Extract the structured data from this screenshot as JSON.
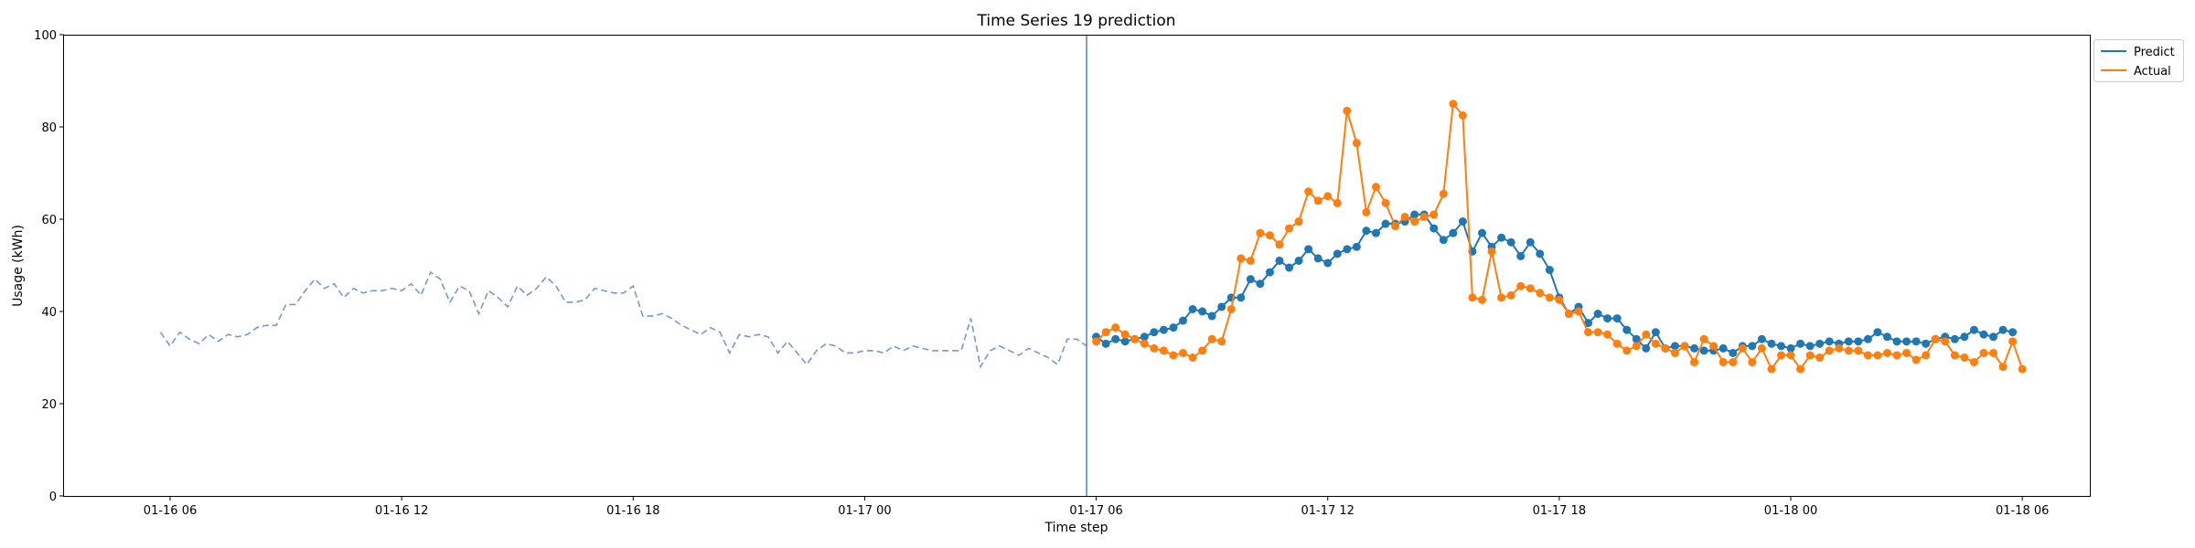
{
  "chart_data": {
    "type": "line",
    "title": "Time Series 19 prediction",
    "xlabel": "Time step",
    "ylabel": "Usage (kWh)",
    "xlim": [
      "2024-01-16T03:15",
      "2024-01-18T07:45"
    ],
    "ylim": [
      0,
      100
    ],
    "x_ticks": [
      {
        "x": "2024-01-16T06:00",
        "label": "01-16 06"
      },
      {
        "x": "2024-01-16T12:00",
        "label": "01-16 12"
      },
      {
        "x": "2024-01-16T18:00",
        "label": "01-16 18"
      },
      {
        "x": "2024-01-17T00:00",
        "label": "01-17 00"
      },
      {
        "x": "2024-01-17T06:00",
        "label": "01-17 06"
      },
      {
        "x": "2024-01-17T12:00",
        "label": "01-17 12"
      },
      {
        "x": "2024-01-17T18:00",
        "label": "01-17 18"
      },
      {
        "x": "2024-01-18T00:00",
        "label": "01-18 00"
      },
      {
        "x": "2024-01-18T06:00",
        "label": "01-18 06"
      }
    ],
    "y_ticks": [
      0,
      20,
      40,
      60,
      80,
      100
    ],
    "grid": false,
    "legend_position": "top-right, outside plot",
    "vertical_line": {
      "x": "2024-01-17T05:45",
      "color": "#5b7fbf"
    },
    "history": {
      "start": "2024-01-16T05:45",
      "interval_minutes": 15,
      "color": "#7799cc",
      "style": "dashed",
      "values": [
        35.5,
        32.5,
        35.5,
        34.0,
        33.0,
        35.0,
        33.5,
        35.0,
        34.5,
        35.0,
        36.5,
        37.0,
        37.0,
        41.5,
        41.5,
        44.5,
        47.0,
        45.0,
        46.0,
        43.0,
        45.0,
        44.0,
        44.5,
        44.5,
        45.0,
        44.5,
        46.0,
        43.5,
        48.5,
        47.0,
        42.0,
        45.5,
        44.5,
        39.5,
        44.5,
        43.0,
        41.0,
        45.5,
        43.5,
        45.0,
        47.5,
        45.5,
        42.0,
        42.0,
        42.5,
        45.0,
        44.5,
        44.0,
        44.0,
        45.5,
        39.0,
        39.0,
        39.5,
        38.5,
        37.0,
        36.0,
        35.0,
        36.5,
        35.5,
        31.0,
        35.0,
        34.5,
        35.0,
        34.5,
        31.0,
        33.5,
        31.0,
        28.5,
        31.5,
        33.0,
        32.5,
        31.0,
        31.0,
        31.5,
        31.5,
        31.0,
        32.5,
        31.5,
        32.5,
        32.0,
        31.5,
        31.5,
        31.5,
        31.5,
        38.5,
        28.0,
        31.5,
        32.5,
        31.5,
        30.5,
        32.0,
        31.0,
        30.0,
        28.5,
        34.0,
        34.0,
        32.5
      ]
    },
    "series": [
      {
        "name": "Predict",
        "color": "#1f77b4",
        "start": "2024-01-17T06:00",
        "interval_minutes": 15,
        "values": [
          34.5,
          33.0,
          34.0,
          33.5,
          34.0,
          34.5,
          35.5,
          36.0,
          36.5,
          38.0,
          40.5,
          40.0,
          39.0,
          41.0,
          43.0,
          43.0,
          47.0,
          46.0,
          48.5,
          51.0,
          49.5,
          51.0,
          53.5,
          51.5,
          50.5,
          52.5,
          53.5,
          54.0,
          57.5,
          57.0,
          59.0,
          59.0,
          59.5,
          61.0,
          61.0,
          58.0,
          55.5,
          57.0,
          59.5,
          53.0,
          57.0,
          54.0,
          56.0,
          55.0,
          52.0,
          55.0,
          52.5,
          49.0,
          43.0,
          39.5,
          41.0,
          37.5,
          39.5,
          38.5,
          38.5,
          36.0,
          34.0,
          32.0,
          35.5,
          32.0,
          32.5,
          32.5,
          32.0,
          31.5,
          31.5,
          32.0,
          31.0,
          32.5,
          32.5,
          34.0,
          33.0,
          32.5,
          32.0,
          33.0,
          32.5,
          33.0,
          33.5,
          33.0,
          33.5,
          33.5,
          34.0,
          35.5,
          34.5,
          33.5,
          33.5,
          33.5,
          33.0,
          34.0,
          34.5,
          34.0,
          34.5,
          36.0,
          35.0,
          34.5,
          36.0,
          35.5
        ]
      },
      {
        "name": "Actual",
        "color": "#ff7f0e",
        "start": "2024-01-17T06:00",
        "interval_minutes": 15,
        "values": [
          33.5,
          35.5,
          36.5,
          35.0,
          34.0,
          33.0,
          32.0,
          31.5,
          30.5,
          31.0,
          30.0,
          31.5,
          34.0,
          33.5,
          40.5,
          51.5,
          51.0,
          57.0,
          56.5,
          54.5,
          58.0,
          59.5,
          66.0,
          64.0,
          65.0,
          63.5,
          83.5,
          76.5,
          61.5,
          67.0,
          63.5,
          58.5,
          60.5,
          59.5,
          60.5,
          61.0,
          65.5,
          85.0,
          82.5,
          43.0,
          42.5,
          53.0,
          43.0,
          43.5,
          45.5,
          45.0,
          44.0,
          43.0,
          42.5,
          39.5,
          40.0,
          35.5,
          35.5,
          35.0,
          33.0,
          31.5,
          32.5,
          35.0,
          33.0,
          32.0,
          31.0,
          32.5,
          29.0,
          34.0,
          32.5,
          29.0,
          29.0,
          32.0,
          29.0,
          32.0,
          27.5,
          30.5,
          30.5,
          27.5,
          30.5,
          30.0,
          31.5,
          32.0,
          31.5,
          31.5,
          30.5,
          30.5,
          31.0,
          30.5,
          31.0,
          29.5,
          30.5,
          34.0,
          33.5,
          30.5,
          30.0,
          29.0,
          31.0,
          31.0,
          28.0,
          33.5,
          27.5
        ]
      }
    ]
  }
}
